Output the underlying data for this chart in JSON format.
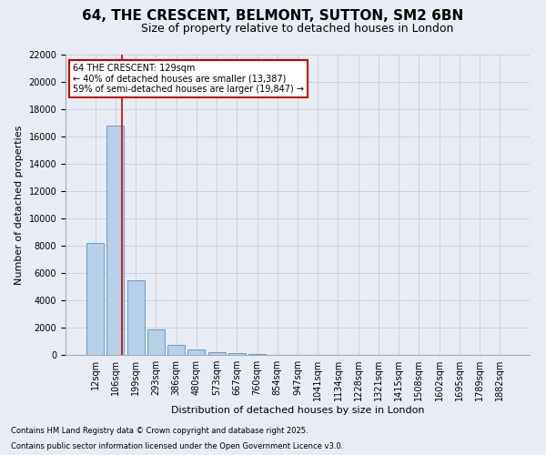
{
  "title1": "64, THE CRESCENT, BELMONT, SUTTON, SM2 6BN",
  "title2": "Size of property relative to detached houses in London",
  "xlabel": "Distribution of detached houses by size in London",
  "ylabel": "Number of detached properties",
  "bar_labels": [
    "12sqm",
    "106sqm",
    "199sqm",
    "293sqm",
    "386sqm",
    "480sqm",
    "573sqm",
    "667sqm",
    "760sqm",
    "854sqm",
    "947sqm",
    "1041sqm",
    "1134sqm",
    "1228sqm",
    "1321sqm",
    "1415sqm",
    "1508sqm",
    "1602sqm",
    "1695sqm",
    "1789sqm",
    "1882sqm"
  ],
  "bar_values": [
    8200,
    16800,
    5500,
    1850,
    750,
    400,
    220,
    150,
    80,
    0,
    0,
    0,
    0,
    0,
    0,
    0,
    0,
    0,
    0,
    0,
    0
  ],
  "bar_color": "#b8cfe8",
  "bar_edge_color": "#6699cc",
  "grid_color": "#cccccc",
  "bg_color": "#e8edf5",
  "red_line_x": 1.3,
  "annotation_text": "64 THE CRESCENT: 129sqm\n← 40% of detached houses are smaller (13,387)\n59% of semi-detached houses are larger (19,847) →",
  "annotation_box_color": "#ffffff",
  "annotation_box_edge": "#cc0000",
  "ylim": [
    0,
    22000
  ],
  "yticks": [
    0,
    2000,
    4000,
    6000,
    8000,
    10000,
    12000,
    14000,
    16000,
    18000,
    20000,
    22000
  ],
  "footer1": "Contains HM Land Registry data © Crown copyright and database right 2025.",
  "footer2": "Contains public sector information licensed under the Open Government Licence v3.0.",
  "title1_fontsize": 11,
  "title2_fontsize": 9,
  "tick_fontsize": 7,
  "ylabel_fontsize": 8,
  "xlabel_fontsize": 8,
  "annotation_fontsize": 7,
  "footer_fontsize": 6
}
